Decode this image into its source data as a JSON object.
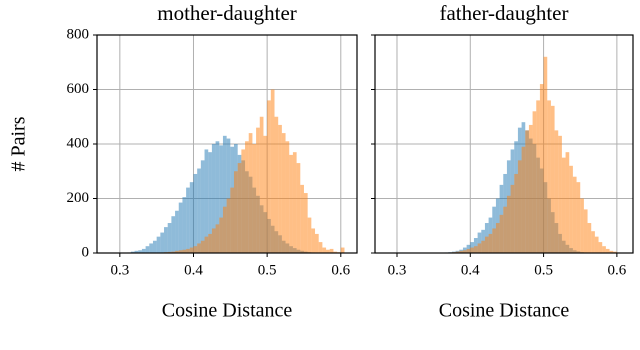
{
  "chart_data": [
    {
      "type": "histogram",
      "title": "mother-daughter",
      "xlabel": "Cosine Distance",
      "ylabel": "# Pairs",
      "xlim": [
        0.269,
        0.622
      ],
      "xticks": [
        0.3,
        0.4,
        0.5,
        0.6
      ],
      "ylim": [
        0,
        800
      ],
      "yticks": [
        0,
        200,
        400,
        600,
        800
      ],
      "grid": true,
      "show_ytick_labels": true,
      "bins": [
        0.3,
        0.305,
        0.31,
        0.315,
        0.32,
        0.325,
        0.33,
        0.335,
        0.34,
        0.345,
        0.35,
        0.355,
        0.36,
        0.365,
        0.37,
        0.375,
        0.38,
        0.385,
        0.39,
        0.395,
        0.4,
        0.405,
        0.41,
        0.415,
        0.42,
        0.425,
        0.43,
        0.435,
        0.44,
        0.445,
        0.45,
        0.455,
        0.46,
        0.465,
        0.47,
        0.475,
        0.48,
        0.485,
        0.49,
        0.495,
        0.5,
        0.505,
        0.51,
        0.515,
        0.52,
        0.525,
        0.53,
        0.535,
        0.54,
        0.545,
        0.55,
        0.555,
        0.56,
        0.565,
        0.57,
        0.575,
        0.58,
        0.585,
        0.59,
        0.595,
        0.6,
        0.605,
        0.61
      ],
      "series": [
        {
          "color": "#1f77b4",
          "values": [
            0,
            0,
            2,
            5,
            8,
            10,
            15,
            25,
            35,
            45,
            60,
            75,
            95,
            110,
            135,
            155,
            185,
            205,
            240,
            260,
            290,
            310,
            340,
            380,
            370,
            400,
            410,
            395,
            430,
            420,
            390,
            400,
            360,
            340,
            300,
            280,
            240,
            210,
            175,
            150,
            125,
            100,
            80,
            65,
            45,
            35,
            25,
            18,
            12,
            8,
            5,
            3,
            2,
            1,
            0,
            0,
            0,
            0,
            0,
            0,
            0,
            0
          ]
        },
        {
          "color": "#ff7f0e",
          "values": [
            0,
            0,
            0,
            0,
            0,
            0,
            0,
            0,
            0,
            0,
            0,
            2,
            3,
            4,
            5,
            8,
            10,
            12,
            15,
            20,
            25,
            35,
            45,
            60,
            70,
            90,
            105,
            130,
            170,
            200,
            240,
            300,
            330,
            380,
            410,
            440,
            400,
            460,
            500,
            430,
            560,
            600,
            500,
            470,
            440,
            410,
            360,
            370,
            330,
            250,
            220,
            130,
            90,
            70,
            40,
            20,
            12,
            15,
            5,
            3,
            20,
            0
          ]
        }
      ]
    },
    {
      "type": "histogram",
      "title": "father-daughter",
      "xlabel": "Cosine Distance",
      "xlim": [
        0.27,
        0.622
      ],
      "xticks": [
        0.3,
        0.4,
        0.5,
        0.6
      ],
      "ylim": [
        0,
        800
      ],
      "yticks": [
        0,
        200,
        400,
        600,
        800
      ],
      "grid": true,
      "show_ytick_labels": false,
      "bins": [
        0.3,
        0.305,
        0.31,
        0.315,
        0.32,
        0.325,
        0.33,
        0.335,
        0.34,
        0.345,
        0.35,
        0.355,
        0.36,
        0.365,
        0.37,
        0.375,
        0.38,
        0.385,
        0.39,
        0.395,
        0.4,
        0.405,
        0.41,
        0.415,
        0.42,
        0.425,
        0.43,
        0.435,
        0.44,
        0.445,
        0.45,
        0.455,
        0.46,
        0.465,
        0.47,
        0.475,
        0.48,
        0.485,
        0.49,
        0.495,
        0.5,
        0.505,
        0.51,
        0.515,
        0.52,
        0.525,
        0.53,
        0.535,
        0.54,
        0.545,
        0.55,
        0.555,
        0.56,
        0.565,
        0.57,
        0.575,
        0.58,
        0.585,
        0.59,
        0.595,
        0.6,
        0.605,
        0.61
      ],
      "series": [
        {
          "color": "#1f77b4",
          "values": [
            0,
            0,
            0,
            0,
            0,
            0,
            0,
            0,
            0,
            0,
            0,
            0,
            1,
            2,
            3,
            5,
            8,
            12,
            20,
            30,
            40,
            55,
            75,
            85,
            110,
            130,
            170,
            200,
            250,
            290,
            340,
            380,
            410,
            460,
            480,
            450,
            420,
            400,
            350,
            310,
            260,
            200,
            150,
            110,
            70,
            45,
            30,
            18,
            10,
            6,
            3,
            2,
            0,
            0,
            0,
            0,
            0,
            0,
            0,
            0,
            0,
            0
          ]
        },
        {
          "color": "#ff7f0e",
          "values": [
            0,
            0,
            0,
            0,
            0,
            0,
            0,
            0,
            0,
            0,
            0,
            0,
            0,
            0,
            2,
            3,
            5,
            8,
            10,
            15,
            20,
            25,
            35,
            45,
            60,
            70,
            90,
            110,
            140,
            170,
            210,
            250,
            290,
            340,
            390,
            450,
            470,
            520,
            560,
            620,
            720,
            560,
            540,
            450,
            430,
            350,
            370,
            320,
            280,
            260,
            200,
            160,
            110,
            80,
            60,
            40,
            25,
            15,
            8,
            5,
            2,
            1
          ]
        }
      ]
    }
  ]
}
